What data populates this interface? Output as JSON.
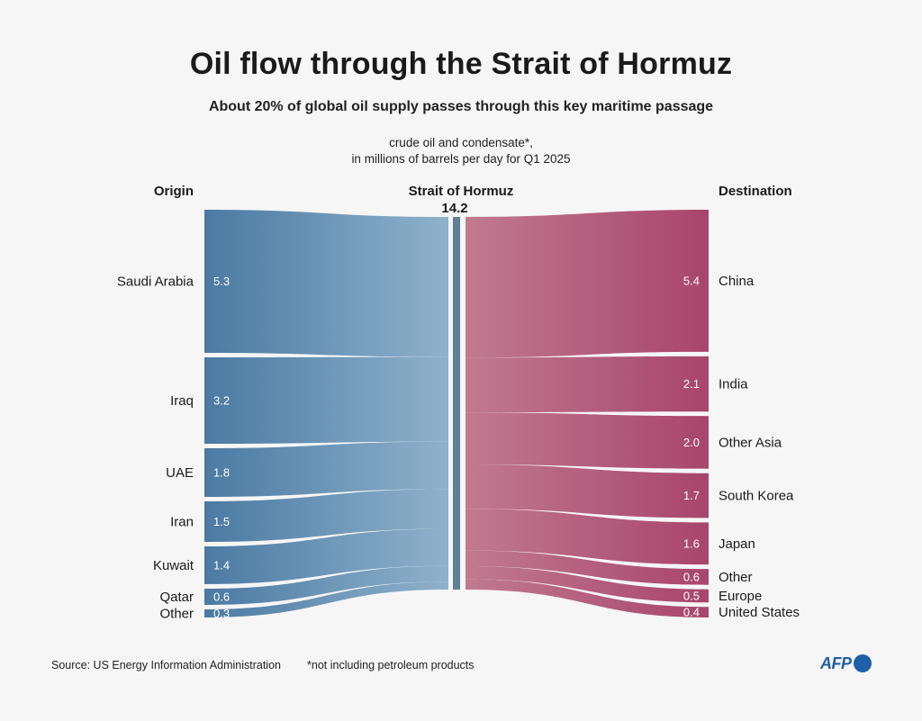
{
  "header": {
    "title": "Oil flow through the Strait of Hormuz",
    "subtitle": "About 20% of global oil supply passes through this key maritime passage",
    "units_line1": "crude oil and condensate*,",
    "units_line2": "in millions of barrels per day for Q1 2025"
  },
  "footer": {
    "source": "Source: US Energy Information Administration",
    "footnote": "*not including petroleum products",
    "logo_text": "AFP"
  },
  "colors": {
    "origin_dark": "#4b7aa3",
    "origin_light": "#8fb2cc",
    "dest_light": "#c07a90",
    "dest_dark": "#a8456b",
    "strait_bar": "#5f7f96"
  },
  "chart_data": {
    "type": "sankey",
    "origin_heading": "Origin",
    "destination_heading": "Destination",
    "center_heading": "Strait of Hormuz",
    "center_total": "14.2",
    "origins": [
      {
        "name": "Saudi Arabia",
        "label": "5.3",
        "value": 5.3
      },
      {
        "name": "Iraq",
        "label": "3.2",
        "value": 3.2
      },
      {
        "name": "UAE",
        "label": "1.8",
        "value": 1.8
      },
      {
        "name": "Iran",
        "label": "1.5",
        "value": 1.5
      },
      {
        "name": "Kuwait",
        "label": "1.4",
        "value": 1.4
      },
      {
        "name": "Qatar",
        "label": "0.6",
        "value": 0.6
      },
      {
        "name": "Other",
        "label": "0.3",
        "value": 0.3
      }
    ],
    "destinations": [
      {
        "name": "China",
        "label": "5.4",
        "value": 5.4
      },
      {
        "name": "India",
        "label": "2.1",
        "value": 2.1
      },
      {
        "name": "Other Asia",
        "label": "2.0",
        "value": 2.0
      },
      {
        "name": "South Korea",
        "label": "1.7",
        "value": 1.7
      },
      {
        "name": "Japan",
        "label": "1.6",
        "value": 1.6
      },
      {
        "name": "Other",
        "label": "0.6",
        "value": 0.6
      },
      {
        "name": "Europe",
        "label": "0.5",
        "value": 0.5
      },
      {
        "name": "United States",
        "label": "0.4",
        "value": 0.4
      }
    ]
  }
}
